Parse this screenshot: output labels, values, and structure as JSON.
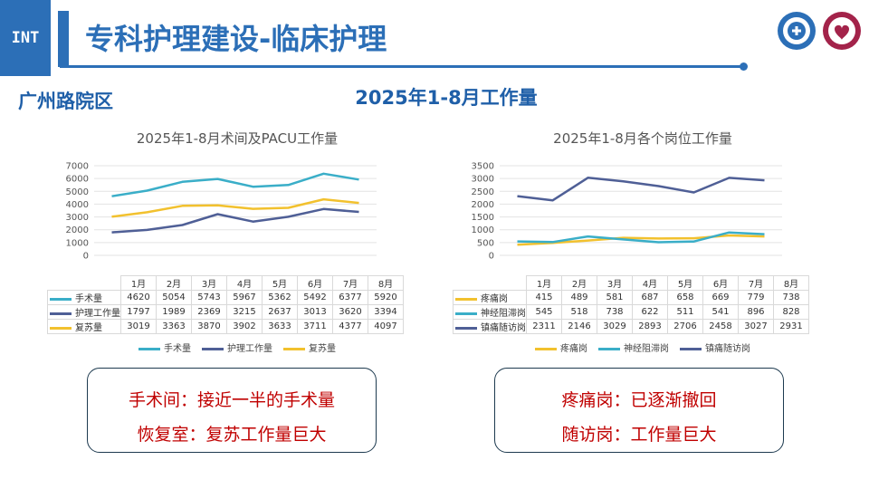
{
  "header": {
    "tag": "INT",
    "title": "专科护理建设-临床护理",
    "campus": "广州路院区",
    "subtitle": "2025年1-8月工作量"
  },
  "colors": {
    "brand": "#2c6fb7",
    "teal": "#3aaec8",
    "navy": "#4f5f96",
    "yellow": "#f2c12e",
    "note_text": "#c00000"
  },
  "chart_data": [
    {
      "type": "line",
      "title": "2025年1-8月术间及PACU工作量",
      "categories": [
        "1月",
        "2月",
        "3月",
        "4月",
        "5月",
        "6月",
        "7月",
        "8月"
      ],
      "ylim": [
        0,
        7000
      ],
      "yticks": [
        "0",
        "1000",
        "2000",
        "3000",
        "4000",
        "5000",
        "6000",
        "7000"
      ],
      "series": [
        {
          "name": "手术量",
          "color": "#3aaec8",
          "values": [
            4620,
            5054,
            5743,
            5967,
            5362,
            5492,
            6377,
            5920
          ]
        },
        {
          "name": "护理工作量",
          "color": "#4f5f96",
          "values": [
            1797,
            1989,
            2369,
            3215,
            2637,
            3013,
            3620,
            3394
          ]
        },
        {
          "name": "复苏量",
          "color": "#f2c12e",
          "values": [
            3019,
            3363,
            3870,
            3902,
            3633,
            3711,
            4377,
            4097
          ]
        }
      ]
    },
    {
      "type": "line",
      "title": "2025年1-8月各个岗位工作量",
      "categories": [
        "1月",
        "2月",
        "3月",
        "4月",
        "5月",
        "6月",
        "7月",
        "8月"
      ],
      "ylim": [
        0,
        3500
      ],
      "yticks": [
        "0",
        "500",
        "1000",
        "1500",
        "2000",
        "2500",
        "3000",
        "3500"
      ],
      "series": [
        {
          "name": "疼痛岗",
          "color": "#f2c12e",
          "values": [
            415,
            489,
            581,
            687,
            658,
            669,
            779,
            738
          ]
        },
        {
          "name": "神经阻滞岗",
          "color": "#3aaec8",
          "values": [
            545,
            518,
            738,
            622,
            511,
            541,
            896,
            828
          ]
        },
        {
          "name": "镇痛随访岗",
          "color": "#4f5f96",
          "values": [
            2311,
            2146,
            3029,
            2893,
            2706,
            2458,
            3027,
            2931
          ]
        }
      ]
    }
  ],
  "notes": {
    "left": [
      "手术间：接近一半的手术量",
      "恢复室：复苏工作量巨大"
    ],
    "right": [
      "疼痛岗：已逐渐撤回",
      "随访岗：工作量巨大"
    ]
  }
}
